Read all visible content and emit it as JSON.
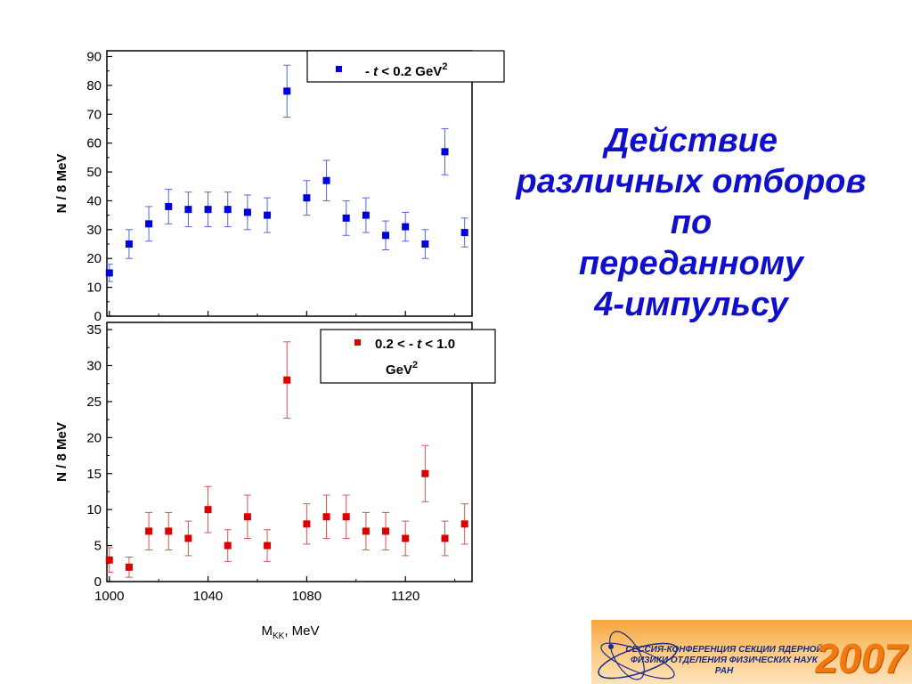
{
  "slide": {
    "title_lines": [
      "Действие",
      "различных отборов",
      "по",
      "переданному",
      "4-импульсу"
    ]
  },
  "logo": {
    "lines": [
      "СЕССИЯ-КОНФЕРЕНЦИЯ СЕКЦИИ ЯДЕРНОЙ",
      "ФИЗИКИ ОТДЕЛЕНИЯ ФИЗИЧЕСКИХ НАУК",
      "РАН"
    ],
    "year": "2007",
    "colors": {
      "band": "#f7a43c",
      "text": "#1a2a8a",
      "year": "#f07a10"
    }
  },
  "chart_data": [
    {
      "type": "scatter",
      "panel": "top",
      "ylabel": "N / 8 MeV",
      "xlim": [
        999,
        1147
      ],
      "ylim": [
        0,
        92
      ],
      "yticks": [
        0,
        10,
        20,
        30,
        40,
        50,
        60,
        70,
        80,
        90
      ],
      "color": "#0000dd",
      "error_color": "#5566dd",
      "legend": {
        "position": "top-right",
        "parts": [
          "- ",
          "t",
          " < 0.2 GeV",
          "2"
        ]
      },
      "points": [
        {
          "x": 1000,
          "y": 15,
          "err": 3
        },
        {
          "x": 1008,
          "y": 25,
          "err": 5
        },
        {
          "x": 1016,
          "y": 32,
          "err": 6
        },
        {
          "x": 1024,
          "y": 38,
          "err": 6
        },
        {
          "x": 1032,
          "y": 37,
          "err": 6
        },
        {
          "x": 1040,
          "y": 37,
          "err": 6
        },
        {
          "x": 1048,
          "y": 37,
          "err": 6
        },
        {
          "x": 1056,
          "y": 36,
          "err": 6
        },
        {
          "x": 1064,
          "y": 35,
          "err": 6
        },
        {
          "x": 1072,
          "y": 78,
          "err": 9
        },
        {
          "x": 1080,
          "y": 41,
          "err": 6
        },
        {
          "x": 1088,
          "y": 47,
          "err": 7
        },
        {
          "x": 1096,
          "y": 34,
          "err": 6
        },
        {
          "x": 1104,
          "y": 35,
          "err": 6
        },
        {
          "x": 1112,
          "y": 28,
          "err": 5
        },
        {
          "x": 1120,
          "y": 31,
          "err": 5
        },
        {
          "x": 1128,
          "y": 25,
          "err": 5
        },
        {
          "x": 1136,
          "y": 57,
          "err": 8
        },
        {
          "x": 1144,
          "y": 29,
          "err": 5
        }
      ]
    },
    {
      "type": "scatter",
      "panel": "bottom",
      "ylabel": "N / 8 MeV",
      "xlabel_main": "M",
      "xlabel_sub": "KK",
      "xlabel_tail": ", MeV",
      "xlim": [
        999,
        1147
      ],
      "ylim": [
        0,
        36
      ],
      "xticks": [
        1000,
        1040,
        1080,
        1120
      ],
      "yticks": [
        0,
        5,
        10,
        15,
        20,
        25,
        30,
        35
      ],
      "color": "#dd0000",
      "error_color": "#e05050",
      "legend": {
        "position": "top-right",
        "line1_parts": [
          "0.2 < - ",
          "t",
          "  < 1.0"
        ],
        "line2_parts": [
          "GeV",
          "2"
        ]
      },
      "points": [
        {
          "x": 1000,
          "y": 3,
          "err": 1.7
        },
        {
          "x": 1008,
          "y": 2,
          "err": 1.4
        },
        {
          "x": 1016,
          "y": 7,
          "err": 2.6
        },
        {
          "x": 1024,
          "y": 7,
          "err": 2.6
        },
        {
          "x": 1032,
          "y": 6,
          "err": 2.4
        },
        {
          "x": 1040,
          "y": 10,
          "err": 3.2
        },
        {
          "x": 1048,
          "y": 5,
          "err": 2.2
        },
        {
          "x": 1056,
          "y": 9,
          "err": 3.0
        },
        {
          "x": 1064,
          "y": 5,
          "err": 2.2
        },
        {
          "x": 1072,
          "y": 28,
          "err": 5.3
        },
        {
          "x": 1080,
          "y": 8,
          "err": 2.8
        },
        {
          "x": 1088,
          "y": 9,
          "err": 3.0
        },
        {
          "x": 1096,
          "y": 9,
          "err": 3.0
        },
        {
          "x": 1104,
          "y": 7,
          "err": 2.6
        },
        {
          "x": 1112,
          "y": 7,
          "err": 2.6
        },
        {
          "x": 1120,
          "y": 6,
          "err": 2.4
        },
        {
          "x": 1128,
          "y": 15,
          "err": 3.9
        },
        {
          "x": 1136,
          "y": 6,
          "err": 2.4
        },
        {
          "x": 1144,
          "y": 8,
          "err": 2.8
        }
      ]
    }
  ]
}
